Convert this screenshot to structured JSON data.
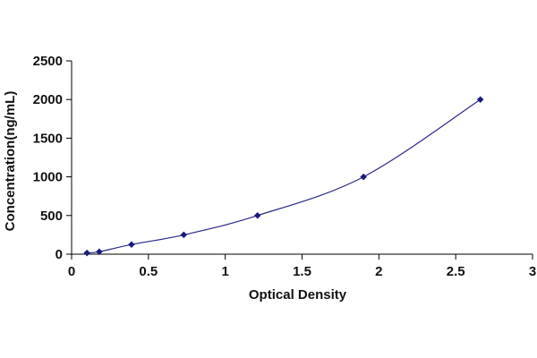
{
  "chart_data": {
    "type": "scatter",
    "title": "",
    "xlabel": "Optical Density",
    "ylabel": "Concentration(ng/mL)",
    "xlim": [
      0,
      3
    ],
    "ylim": [
      0,
      2500
    ],
    "x_ticks": [
      0,
      0.5,
      1,
      1.5,
      2,
      2.5,
      3
    ],
    "x_tick_labels": [
      "0",
      "0.5",
      "1",
      "1.5",
      "2",
      "2.5",
      "3"
    ],
    "y_ticks": [
      0,
      500,
      1000,
      1500,
      2000,
      2500
    ],
    "y_tick_labels": [
      "0",
      "500",
      "1000",
      "1500",
      "2000",
      "2500"
    ],
    "grid": false,
    "legend": "none",
    "fit_curve": true,
    "series": [
      {
        "x": [
          0.1,
          0.18,
          0.39,
          0.73,
          1.21,
          1.9,
          2.66
        ],
        "y": [
          15.6,
          31.25,
          125,
          250,
          500,
          1000,
          2000
        ],
        "color": "#1a1a80"
      }
    ],
    "colors": {
      "marker": "#1a1a80",
      "curve": "#2a2a8a",
      "axis": "#000000"
    }
  }
}
